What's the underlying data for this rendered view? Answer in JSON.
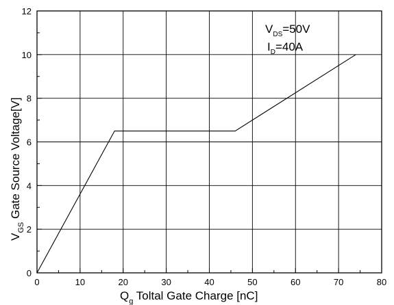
{
  "chart_data": {
    "type": "line",
    "title": "",
    "xlabel": {
      "main": "Q",
      "sub": "g",
      "rest": " Toltal Gate Charge [nC]"
    },
    "ylabel": {
      "main": "V",
      "sub": "GS",
      "rest": " Gate Source Voltage[V]"
    },
    "xlim": [
      0,
      80
    ],
    "ylim": [
      0,
      12
    ],
    "xticks": [
      0,
      10,
      20,
      30,
      40,
      50,
      60,
      70,
      80
    ],
    "yticks": [
      0,
      2,
      4,
      6,
      8,
      10,
      12
    ],
    "grid": true,
    "series": [
      {
        "x": [
          0,
          18,
          46,
          74
        ],
        "y": [
          0,
          6.5,
          6.5,
          10
        ]
      }
    ],
    "annotations": [
      {
        "main": "V",
        "sub": "DS",
        "rest": "=50V"
      },
      {
        "main": "I",
        "sub": "D",
        "rest": "=40A"
      }
    ],
    "colors": {
      "line": "#000000",
      "grid": "#000000",
      "background": "#ffffff"
    }
  }
}
